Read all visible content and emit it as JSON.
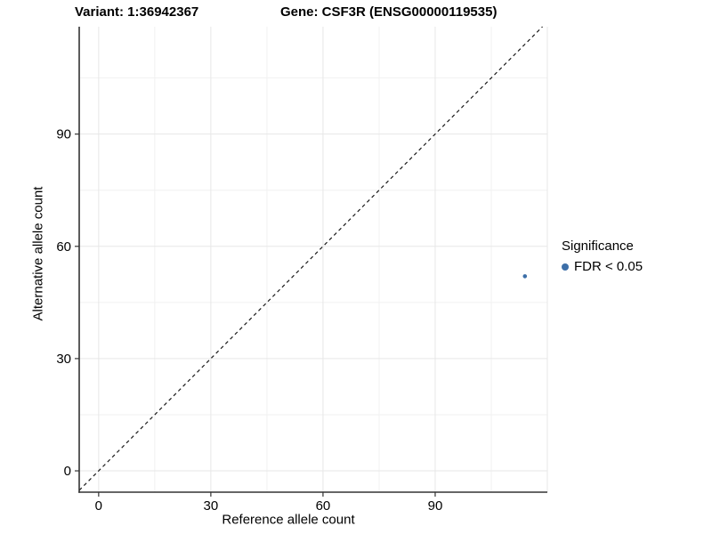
{
  "figure": {
    "title_variant": "Variant: 1:36942367",
    "title_gene": "Gene: CSF3R (ENSG00000119535)"
  },
  "chart_data": {
    "type": "scatter",
    "xlabel": "Reference allele count",
    "ylabel": "Alternative allele count",
    "xlim": [
      -5.2,
      120.0
    ],
    "ylim": [
      -5.7,
      118.7
    ],
    "x_ticks": [
      0,
      30,
      60,
      90
    ],
    "y_ticks": [
      0,
      30,
      60,
      90
    ],
    "x_grid_major": [
      0,
      30,
      60,
      90,
      120
    ],
    "x_grid_minor": [
      15,
      45,
      75,
      105
    ],
    "y_grid_major": [
      0,
      30,
      60,
      90
    ],
    "y_grid_minor": [
      15,
      45,
      75,
      105
    ],
    "reference_line": {
      "kind": "identity",
      "style": "dashed",
      "color": "#1a1a1a"
    },
    "series": [
      {
        "name": "FDR < 0.05",
        "color": "#3d6fa8",
        "points": [
          {
            "x": 114,
            "y": 52
          }
        ]
      }
    ],
    "legend": {
      "title": "Significance",
      "position": "right",
      "items": [
        {
          "label": "FDR < 0.05",
          "color": "#3d6fa8"
        }
      ]
    },
    "grid": "major+minor",
    "colors": {
      "grid_major": "#e7e7e7",
      "grid_minor": "#f1f1f1",
      "axis": "#333333",
      "text": "#000000",
      "background": "#ffffff"
    }
  }
}
